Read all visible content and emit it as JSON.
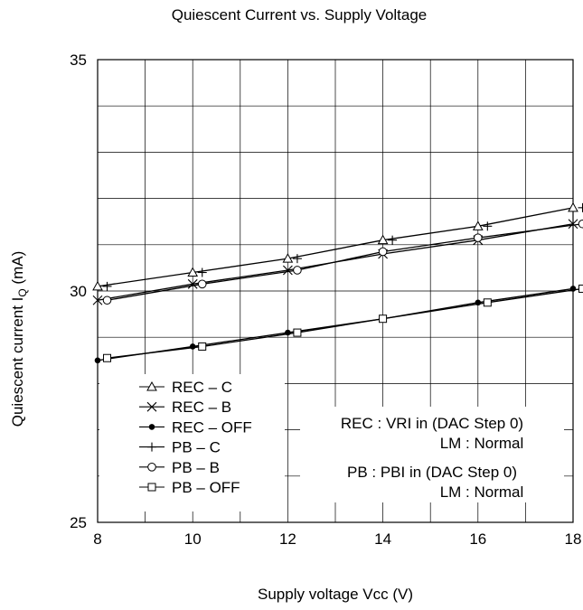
{
  "chart_data": {
    "type": "line",
    "title": "Quiescent Current vs. Supply Voltage",
    "xlabel": "Supply voltage Vcc (V)",
    "ylabel_main": "Quiescent current I",
    "ylabel_sub": "Q",
    "ylabel_unit": " (mA)",
    "xlim": [
      8,
      18
    ],
    "ylim": [
      25,
      35
    ],
    "x_ticks": [
      "8",
      "10",
      "12",
      "14",
      "16",
      "18"
    ],
    "y_ticks": [
      "25",
      "30",
      "35"
    ],
    "grid": true,
    "legend_position": "bottom-left",
    "series": [
      {
        "name": "REC – C",
        "marker": "triangle",
        "x": [
          8,
          10,
          12,
          14,
          16,
          18
        ],
        "y": [
          30.1,
          30.4,
          30.7,
          31.1,
          31.4,
          31.8
        ]
      },
      {
        "name": "REC – B",
        "marker": "x",
        "x": [
          8,
          10,
          12,
          14,
          16,
          18
        ],
        "y": [
          29.8,
          30.15,
          30.45,
          30.8,
          31.1,
          31.45
        ]
      },
      {
        "name": "REC – OFF",
        "marker": "dot",
        "x": [
          8,
          10,
          12,
          14,
          16,
          18
        ],
        "y": [
          28.5,
          28.8,
          29.1,
          29.4,
          29.75,
          30.05
        ]
      },
      {
        "name": "PB – C",
        "marker": "plus",
        "x": [
          8.2,
          10.2,
          12.2,
          14.2,
          16.2,
          18.2
        ],
        "y": [
          30.1,
          30.4,
          30.7,
          31.1,
          31.4,
          31.8
        ]
      },
      {
        "name": "PB – B",
        "marker": "circle",
        "x": [
          8.2,
          10.2,
          12.2,
          14,
          16,
          18.2
        ],
        "y": [
          29.8,
          30.15,
          30.45,
          30.85,
          31.15,
          31.45
        ]
      },
      {
        "name": "PB – OFF",
        "marker": "square",
        "x": [
          8.2,
          10.2,
          12.2,
          14,
          16.2,
          18.2
        ],
        "y": [
          28.55,
          28.8,
          29.1,
          29.4,
          29.75,
          30.05
        ]
      }
    ],
    "annotations": [
      "REC : VRI in (DAC Step 0)",
      "LM : Normal",
      "PB : PBI in (DAC Step 0)",
      "LM : Normal"
    ]
  }
}
